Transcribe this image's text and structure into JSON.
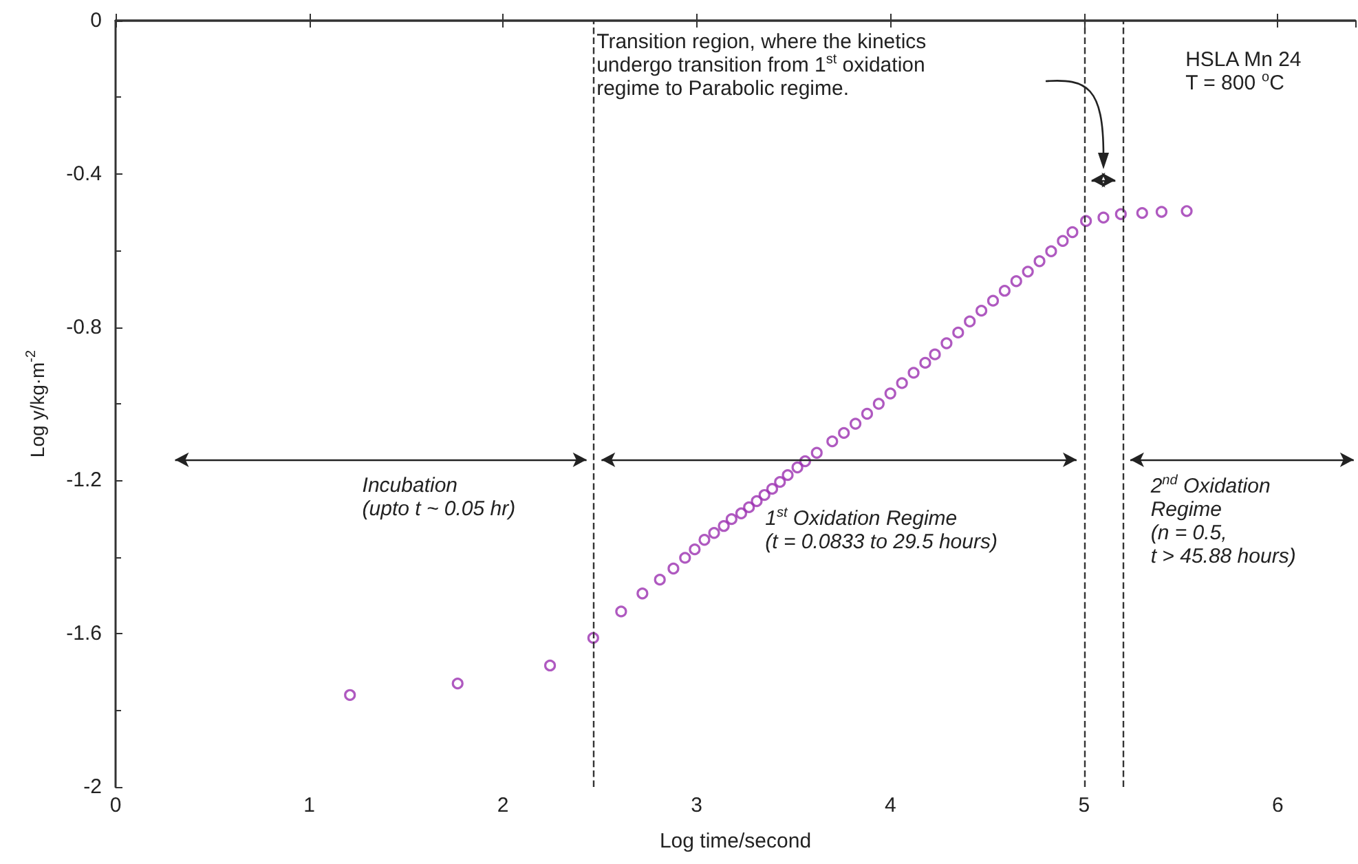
{
  "chart_data": {
    "type": "scatter",
    "xlabel": "Log time/second",
    "ylabel": "Log y/kg·m$^{-2}$",
    "xlim": [
      0,
      6.4
    ],
    "xticks": [
      0,
      1,
      2,
      3,
      4,
      5,
      6
    ],
    "ylim": [
      -2,
      0
    ],
    "yticks": [
      -2,
      -1.6,
      -1.2,
      -0.8,
      -0.4,
      0
    ],
    "marker": "circle",
    "grid": false,
    "series": [
      {
        "color": "#9b30b0",
        "x": [
          1.21,
          1.766,
          2.243,
          2.466,
          2.61,
          2.72,
          2.81,
          2.88,
          2.94,
          2.99,
          3.04,
          3.09,
          3.14,
          3.18,
          3.23,
          3.27,
          3.31,
          3.35,
          3.39,
          3.43,
          3.47,
          3.52,
          3.56,
          3.62,
          3.7,
          3.76,
          3.82,
          3.88,
          3.94,
          4.0,
          4.06,
          4.12,
          4.18,
          4.23,
          4.29,
          4.35,
          4.41,
          4.47,
          4.53,
          4.59,
          4.65,
          4.71,
          4.77,
          4.83,
          4.89,
          4.94,
          5.01,
          5.1,
          5.19,
          5.3,
          5.4,
          5.53
        ],
        "values": [
          -1.76,
          -1.73,
          -1.683,
          -1.611,
          -1.542,
          -1.495,
          -1.459,
          -1.43,
          -1.402,
          -1.38,
          -1.355,
          -1.337,
          -1.319,
          -1.301,
          -1.286,
          -1.27,
          -1.254,
          -1.238,
          -1.222,
          -1.204,
          -1.186,
          -1.166,
          -1.15,
          -1.128,
          -1.098,
          -1.076,
          -1.052,
          -1.026,
          -1.0,
          -0.973,
          -0.946,
          -0.919,
          -0.893,
          -0.871,
          -0.842,
          -0.814,
          -0.785,
          -0.757,
          -0.731,
          -0.705,
          -0.68,
          -0.655,
          -0.628,
          -0.602,
          -0.575,
          -0.552,
          -0.523,
          -0.514,
          -0.505,
          -0.502,
          -0.499,
          -0.497
        ]
      }
    ],
    "ref_lines": [
      {
        "axis": "x",
        "value": 2.47,
        "line_style": "dashed"
      },
      {
        "axis": "x",
        "value": 5.0,
        "line_style": "dashed"
      },
      {
        "axis": "x",
        "value": 5.2,
        "line_style": "dashed"
      }
    ],
    "annotations": [
      "Transition region, where the kinetics\nundergo transition from 1$^{st}$ oxidation\nregime to Parabolic regime.",
      "Incubation\n(upto t ~ 0.05 hr)",
      "1$^{st}$ Oxidation Regime\n(t = 0.0833 to 29.5 hours)",
      "2$^{nd}$ Oxidation\nRegime\n(n = 0.5,\nt > 45.88 hours)",
      "HSLA Mn 24\nT = 800 $^{o}$C"
    ]
  }
}
